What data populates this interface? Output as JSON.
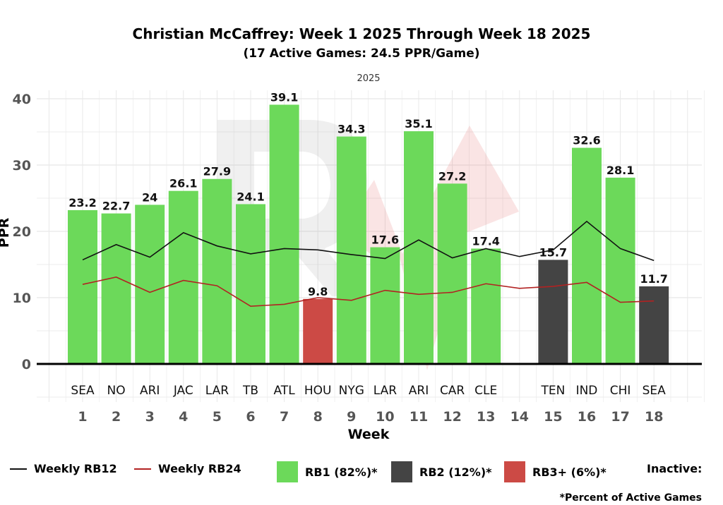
{
  "chart_data": {
    "type": "bar",
    "title": "Christian McCaffrey: Week 1 2025 Through Week 18 2025",
    "subtitle": "(17 Active Games: 24.5 PPR/Game)",
    "facet_label": "2025",
    "xlabel": "Week",
    "ylabel": "PPR",
    "ylim": [
      -5,
      42
    ],
    "yticks": [
      0,
      10,
      20,
      30,
      40
    ],
    "ytick_labels": [
      "0",
      "10",
      "20",
      "30",
      "40"
    ],
    "weeks": [
      "1",
      "2",
      "3",
      "4",
      "5",
      "6",
      "7",
      "8",
      "9",
      "10",
      "11",
      "12",
      "13",
      "14",
      "15",
      "16",
      "17",
      "18"
    ],
    "opponents": [
      "SEA",
      "NO",
      "ARI",
      "JAC",
      "LAR",
      "TB",
      "ATL",
      "HOU",
      "NYG",
      "LAR",
      "ARI",
      "CAR",
      "CLE",
      "",
      "TEN",
      "IND",
      "CHI",
      "SEA"
    ],
    "values": [
      23.2,
      22.7,
      24,
      26.1,
      27.9,
      24.1,
      39.1,
      9.8,
      34.3,
      17.6,
      35.1,
      27.2,
      17.4,
      null,
      15.7,
      32.6,
      28.1,
      11.7
    ],
    "value_labels": [
      "23.2",
      "22.7",
      "24",
      "26.1",
      "27.9",
      "24.1",
      "39.1",
      "9.8",
      "34.3",
      "17.6",
      "35.1",
      "27.2",
      "17.4",
      "",
      "15.7",
      "32.6",
      "28.1",
      "11.7"
    ],
    "tiers": [
      "RB1",
      "RB1",
      "RB1",
      "RB1",
      "RB1",
      "RB1",
      "RB1",
      "RB3+",
      "RB1",
      "RB1",
      "RB1",
      "RB1",
      "RB1",
      "Inactive",
      "RB2",
      "RB1",
      "RB1",
      "RB2"
    ],
    "series": [
      {
        "name": "Weekly RB12",
        "color": "#111111",
        "values": [
          15.7,
          18.0,
          16.1,
          19.8,
          17.8,
          16.6,
          17.4,
          17.2,
          16.5,
          15.9,
          18.7,
          16.0,
          17.4,
          16.2,
          17.2,
          21.5,
          17.4,
          15.6
        ]
      },
      {
        "name": "Weekly RB24",
        "color": "#b22222",
        "values": [
          12.0,
          13.1,
          10.8,
          12.6,
          11.8,
          8.7,
          9.0,
          10.0,
          9.6,
          11.1,
          10.5,
          10.8,
          12.1,
          11.4,
          11.7,
          12.3,
          9.3,
          9.5
        ]
      }
    ],
    "legend": {
      "rb12": "Weekly RB12",
      "rb24": "Weekly RB24",
      "rb1": "RB1 (82%)*",
      "rb2": "RB2 (12%)*",
      "rb3": "RB3+ (6%)*",
      "inactive": "Inactive:"
    },
    "footnote": "*Percent of Active Games",
    "colors": {
      "RB1": "#6cd95a",
      "RB2": "#444444",
      "RB3+": "#cc4a45",
      "grid": "#e8e8e8"
    }
  }
}
